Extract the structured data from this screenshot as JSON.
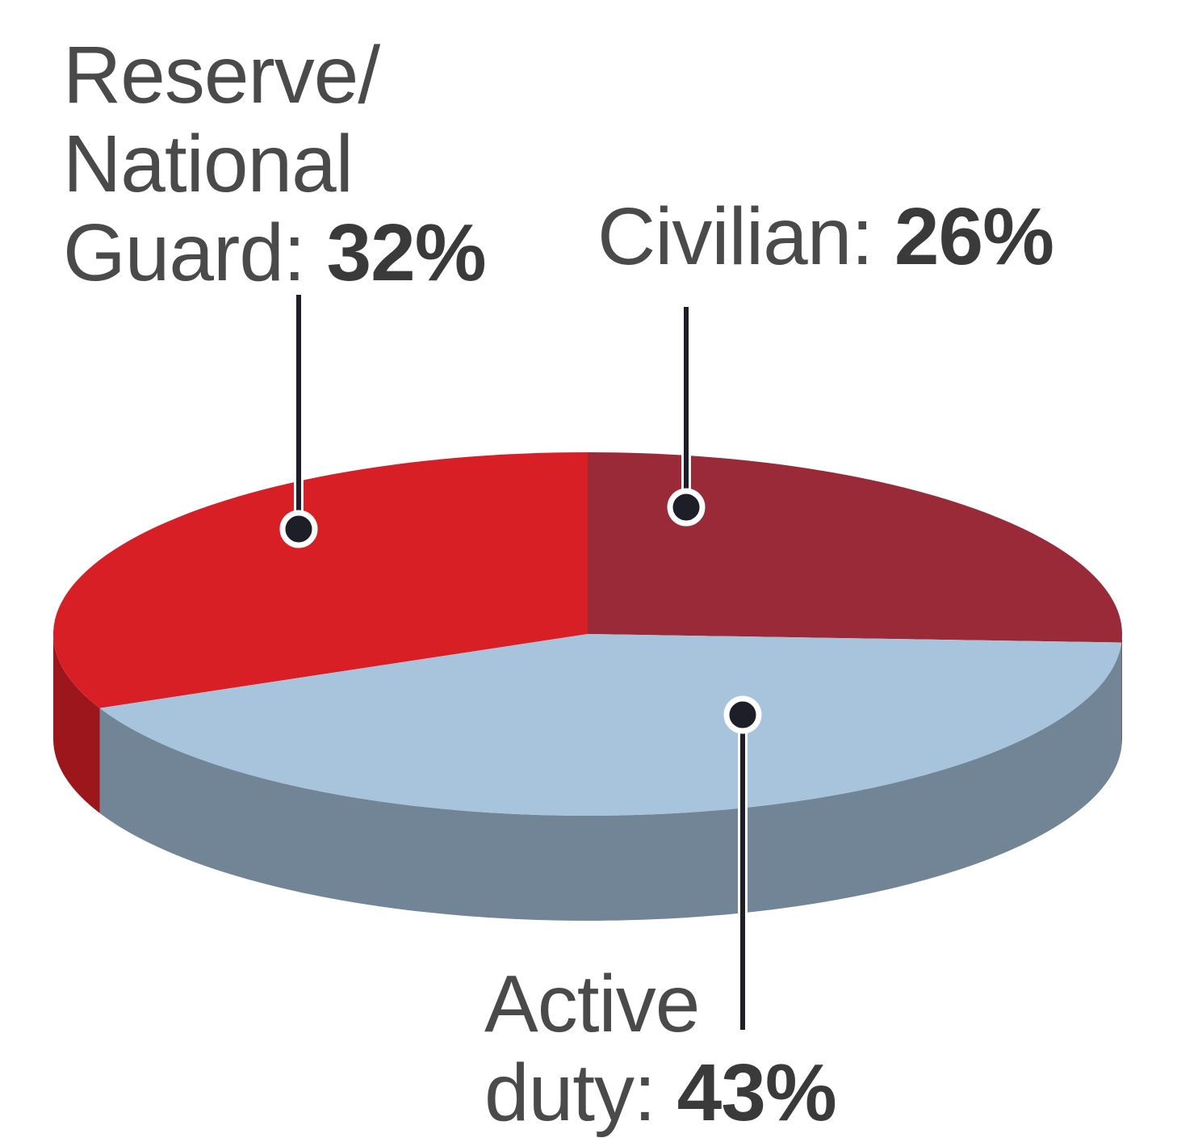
{
  "chart_data": {
    "type": "pie",
    "categories": [
      "Reserve/\nNational\nGuard:",
      "Civilian:",
      "Active\nduty:"
    ],
    "values": [
      32,
      26,
      43
    ],
    "value_labels": [
      "32%",
      "26%",
      "43%"
    ],
    "colors": [
      "#d91f26",
      "#9b2a38",
      "#a7c4dc"
    ],
    "three_d": true
  }
}
